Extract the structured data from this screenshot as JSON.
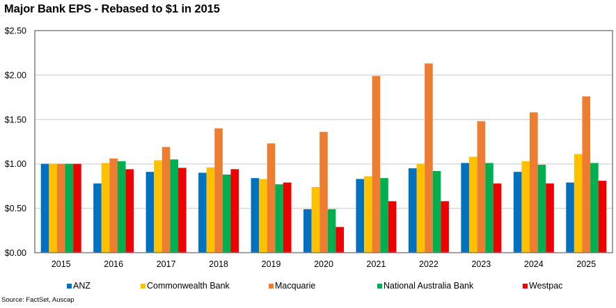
{
  "chart_data": {
    "type": "bar",
    "title": "Major Bank EPS - Rebased to $1 in 2015",
    "xlabel": "",
    "ylabel": "",
    "ylim": [
      0,
      2.5
    ],
    "yticks": [
      0,
      0.5,
      1.0,
      1.5,
      2.0,
      2.5
    ],
    "ytick_labels": [
      "$0.00",
      "$0.50",
      "$1.00",
      "$1.50",
      "$2.00",
      "$2.50"
    ],
    "grid": true,
    "legend_position": "bottom",
    "categories": [
      "2015",
      "2016",
      "2017",
      "2018",
      "2019",
      "2020",
      "2021",
      "2022",
      "2023",
      "2024",
      "2025"
    ],
    "series": [
      {
        "name": "ANZ",
        "color": "#0070C0",
        "values": [
          1.0,
          0.78,
          0.91,
          0.9,
          0.84,
          0.49,
          0.83,
          0.95,
          1.01,
          0.91,
          0.79
        ]
      },
      {
        "name": "Commonwealth Bank",
        "color": "#FFC000",
        "values": [
          1.0,
          1.01,
          1.04,
          0.96,
          0.83,
          0.74,
          0.86,
          1.0,
          1.08,
          1.03,
          1.11
        ]
      },
      {
        "name": "Macquarie",
        "color": "#ED7D31",
        "values": [
          1.0,
          1.06,
          1.19,
          1.4,
          1.23,
          1.36,
          1.99,
          2.13,
          1.48,
          1.58,
          1.76
        ]
      },
      {
        "name": "National Australia Bank",
        "color": "#00B050",
        "values": [
          1.0,
          1.03,
          1.05,
          0.88,
          0.77,
          0.49,
          0.84,
          0.92,
          1.01,
          0.99,
          1.01
        ]
      },
      {
        "name": "Westpac",
        "color": "#EE0000",
        "values": [
          1.0,
          0.94,
          0.955,
          0.94,
          0.79,
          0.29,
          0.58,
          0.58,
          0.78,
          0.78,
          0.81
        ]
      }
    ],
    "source": "Source: FactSet, Auscap"
  }
}
